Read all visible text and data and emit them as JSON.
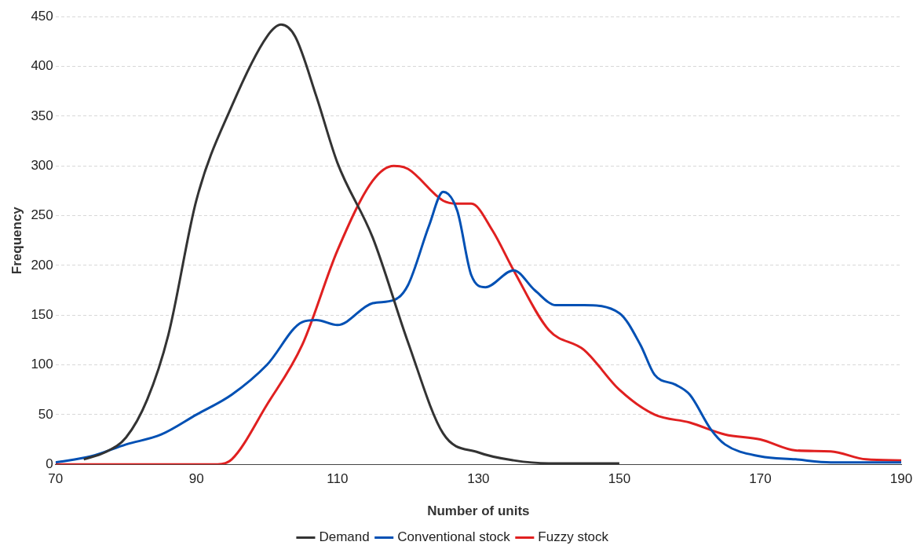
{
  "chart_data": {
    "type": "line",
    "xlabel": "Number of units",
    "ylabel": "Frequency",
    "xlim": [
      70,
      190
    ],
    "xticks": [
      70,
      90,
      110,
      130,
      150,
      170,
      190
    ],
    "ylim": [
      0,
      450
    ],
    "yticks": [
      0,
      50,
      100,
      150,
      200,
      250,
      300,
      350,
      400,
      450
    ],
    "grid": "y",
    "legend": "bottom",
    "marker": "none",
    "line_style": "solid",
    "series": [
      {
        "name": "Demand",
        "color": "#333333",
        "x": [
          74,
          77,
          80,
          83,
          86,
          90,
          95,
          100,
          102,
          104,
          107,
          110,
          115,
          120,
          125,
          130,
          135,
          140,
          150
        ],
        "values": [
          5,
          12,
          27,
          65,
          130,
          266,
          360,
          430,
          442,
          430,
          370,
          303,
          228,
          123,
          31,
          12,
          4,
          1,
          1
        ]
      },
      {
        "name": "Conventional stock",
        "color": "#0050b4",
        "x": [
          70,
          75,
          80,
          85,
          90,
          95,
          100,
          105,
          107,
          110,
          115,
          118,
          120,
          123,
          125,
          127,
          129,
          131,
          135,
          138,
          141,
          145,
          150,
          153,
          155,
          158,
          160,
          163,
          165,
          170,
          175,
          180,
          190
        ],
        "values": [
          2,
          8,
          20,
          30,
          50,
          70,
          100,
          143,
          145,
          140,
          162,
          165,
          180,
          240,
          274,
          255,
          190,
          178,
          195,
          175,
          160,
          160,
          152,
          120,
          90,
          80,
          70,
          35,
          20,
          8,
          5,
          2,
          2
        ]
      },
      {
        "name": "Fuzzy stock",
        "color": "#e02020",
        "x": [
          70,
          93,
          95,
          100,
          105,
          110,
          115,
          118,
          120,
          125,
          127,
          129,
          132,
          135,
          140,
          145,
          150,
          155,
          160,
          165,
          170,
          175,
          180,
          185,
          190
        ],
        "values": [
          0,
          0,
          5,
          60,
          120,
          215,
          285,
          300,
          297,
          265,
          262,
          262,
          235,
          195,
          135,
          115,
          75,
          50,
          42,
          30,
          25,
          14,
          13,
          5,
          4
        ]
      }
    ]
  }
}
